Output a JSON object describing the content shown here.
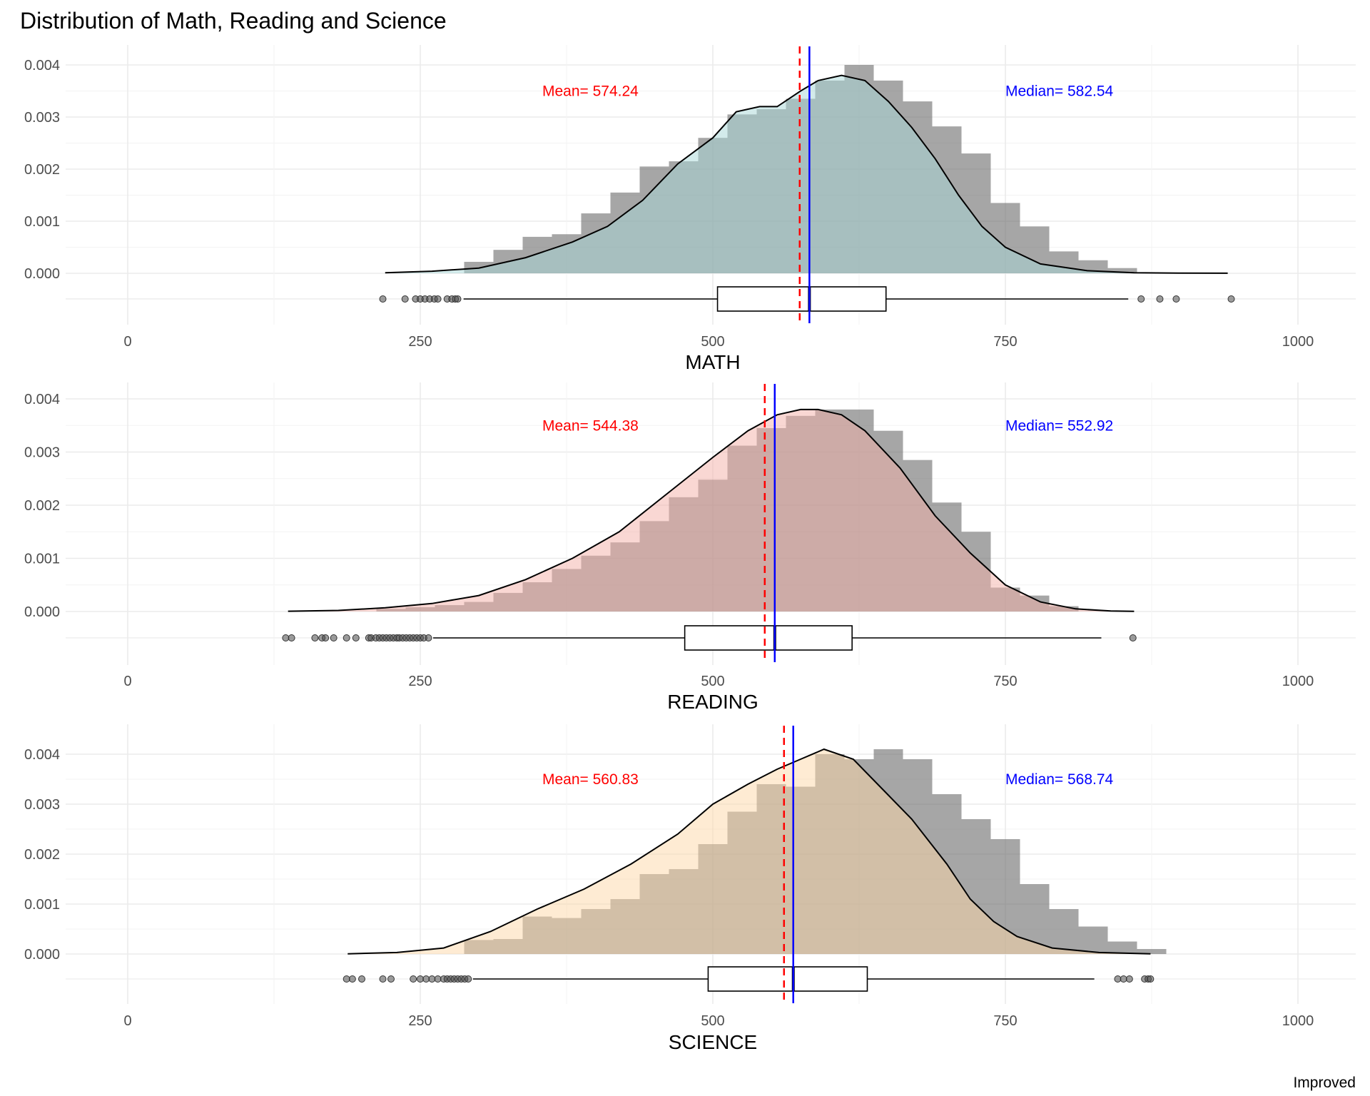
{
  "title": "Distribution of Math, Reading and Science",
  "caption": "Improved",
  "annotation_colors": {
    "mean": "#ff0000",
    "median": "#0000ff"
  },
  "chart_data": [
    {
      "type": "histogram",
      "xlabel": "MATH",
      "xlim": [
        -50,
        1030
      ],
      "ylim": [
        -0.001,
        0.0041
      ],
      "xticks": [
        0,
        250,
        500,
        750,
        1000
      ],
      "xtick_labels": [
        "0",
        "250",
        "500",
        "750",
        "1000"
      ],
      "yticks": [
        0.0,
        0.001,
        0.002,
        0.003,
        0.004
      ],
      "ytick_labels": [
        "0.000",
        "0.001",
        "0.002",
        "0.003",
        "0.004"
      ],
      "fill_color": "#a8d8d8",
      "mean": 574.24,
      "median": 582.54,
      "mean_label": "Mean= 574.24",
      "median_label": "Median= 582.54",
      "bin_width": 25,
      "bins_start": 287.5,
      "hist_values": [
        0.00022,
        0.00045,
        0.0007,
        0.00075,
        0.00115,
        0.00155,
        0.00205,
        0.00215,
        0.0026,
        0.00305,
        0.00315,
        0.00335,
        0.0037,
        0.004,
        0.0037,
        0.0033,
        0.00282,
        0.0023,
        0.00135,
        0.0009,
        0.00042,
        0.00025,
        0.0001
      ],
      "density_x": [
        220,
        260,
        300,
        340,
        380,
        410,
        440,
        470,
        500,
        520,
        540,
        555,
        575,
        590,
        610,
        630,
        650,
        670,
        690,
        710,
        730,
        750,
        780,
        820,
        860,
        900,
        940
      ],
      "density_y": [
        1e-05,
        4e-05,
        0.0001,
        0.0003,
        0.0006,
        0.0009,
        0.0014,
        0.0021,
        0.0026,
        0.0031,
        0.0032,
        0.0032,
        0.0035,
        0.0037,
        0.0038,
        0.0037,
        0.0033,
        0.0028,
        0.0022,
        0.0015,
        0.0009,
        0.0005,
        0.00018,
        5e-05,
        1e-05,
        3e-06,
        1e-06
      ],
      "box": {
        "min": 287,
        "q1": 504,
        "median": 582.54,
        "q3": 648,
        "max": 855
      },
      "outliers": [
        218,
        237,
        246,
        250,
        254,
        258,
        262,
        265,
        273,
        277,
        280,
        282,
        866,
        882,
        896,
        943
      ]
    },
    {
      "type": "histogram",
      "xlabel": "READING",
      "xlim": [
        -50,
        1030
      ],
      "ylim": [
        -0.001,
        0.0041
      ],
      "xticks": [
        0,
        250,
        500,
        750,
        1000
      ],
      "xtick_labels": [
        "0",
        "250",
        "500",
        "750",
        "1000"
      ],
      "yticks": [
        0.0,
        0.001,
        0.002,
        0.003,
        0.004
      ],
      "ytick_labels": [
        "0.000",
        "0.001",
        "0.002",
        "0.003",
        "0.004"
      ],
      "fill_color": "#f4b0a8",
      "mean": 544.38,
      "median": 552.92,
      "mean_label": "Mean= 544.38",
      "median_label": "Median= 552.92",
      "bin_width": 25,
      "bins_start": 212.5,
      "hist_values": [
        5e-05,
        8e-05,
        0.00012,
        0.00018,
        0.00035,
        0.00055,
        0.0008,
        0.00105,
        0.0013,
        0.0017,
        0.00215,
        0.00248,
        0.00312,
        0.00345,
        0.00368,
        0.0038,
        0.0038,
        0.0034,
        0.00285,
        0.00205,
        0.0015,
        0.00045,
        0.0003,
        0.0001
      ],
      "density_x": [
        137,
        180,
        220,
        260,
        300,
        340,
        380,
        420,
        460,
        500,
        530,
        555,
        575,
        590,
        610,
        630,
        660,
        690,
        720,
        750,
        780,
        810,
        840,
        860
      ],
      "density_y": [
        5e-06,
        2e-05,
        7e-05,
        0.00015,
        0.0003,
        0.0006,
        0.001,
        0.0015,
        0.0022,
        0.0029,
        0.0034,
        0.0037,
        0.0038,
        0.0038,
        0.0037,
        0.0034,
        0.0027,
        0.0018,
        0.0011,
        0.0005,
        0.00018,
        5e-05,
        1e-05,
        3e-06
      ],
      "box": {
        "min": 261,
        "q1": 476,
        "median": 552.92,
        "q3": 619,
        "max": 832
      },
      "outliers": [
        135,
        140,
        160,
        166,
        169,
        176,
        187,
        195,
        206,
        208,
        212,
        215,
        218,
        221,
        224,
        227,
        230,
        232,
        235,
        238,
        241,
        244,
        247,
        250,
        253,
        257,
        859
      ]
    },
    {
      "type": "histogram",
      "xlabel": "SCIENCE",
      "xlim": [
        -50,
        1030
      ],
      "ylim": [
        -0.001,
        0.0042
      ],
      "xticks": [
        0,
        250,
        500,
        750,
        1000
      ],
      "xtick_labels": [
        "0",
        "250",
        "500",
        "750",
        "1000"
      ],
      "yticks": [
        0.0,
        0.001,
        0.002,
        0.003,
        0.004
      ],
      "ytick_labels": [
        "0.000",
        "0.001",
        "0.002",
        "0.003",
        "0.004"
      ],
      "fill_color": "#fdd8a8",
      "mean": 560.83,
      "median": 568.74,
      "mean_label": "Mean= 560.83",
      "median_label": "Median= 568.74",
      "bin_width": 25,
      "bins_start": 287.5,
      "hist_values": [
        0.00028,
        0.0003,
        0.00075,
        0.00072,
        0.0009,
        0.0011,
        0.0016,
        0.0017,
        0.0022,
        0.00285,
        0.0034,
        0.00335,
        0.004,
        0.0039,
        0.0041,
        0.0039,
        0.0032,
        0.0027,
        0.0023,
        0.0014,
        0.0009,
        0.00055,
        0.00025,
        0.0001
      ],
      "density_x": [
        188,
        230,
        270,
        310,
        350,
        390,
        430,
        470,
        500,
        530,
        555,
        575,
        595,
        620,
        645,
        670,
        700,
        720,
        740,
        760,
        790,
        830,
        874
      ],
      "density_y": [
        5e-06,
        3e-05,
        0.00012,
        0.00045,
        0.0009,
        0.0013,
        0.0018,
        0.0024,
        0.003,
        0.0034,
        0.0037,
        0.0039,
        0.0041,
        0.0039,
        0.0033,
        0.0027,
        0.0018,
        0.0011,
        0.00065,
        0.00035,
        0.00012,
        3e-05,
        5e-06
      ],
      "box": {
        "min": 295,
        "q1": 496,
        "median": 568.74,
        "q3": 632,
        "max": 826
      },
      "outliers": [
        187,
        192,
        200,
        218,
        225,
        244,
        250,
        255,
        260,
        265,
        270,
        273,
        276,
        279,
        282,
        285,
        288,
        291,
        846,
        851,
        856,
        869,
        872,
        874
      ]
    }
  ]
}
